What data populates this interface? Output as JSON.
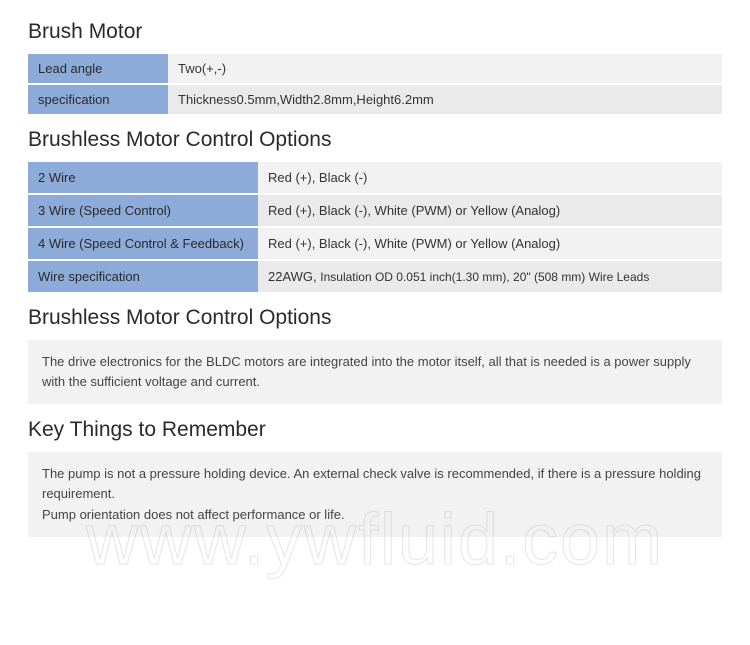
{
  "colors": {
    "header_cell_bg": "#8dabd8",
    "value_cell_bg": "#f2f2f2",
    "value_cell_bg_alt": "#eaeaea",
    "page_bg": "#ffffff",
    "title_color": "#2a2a2a",
    "text_color": "#333333"
  },
  "sections": {
    "brush_motor": {
      "title": "Brush Motor",
      "rows": [
        {
          "label": "Lead angle",
          "value": "Two(+,-)"
        },
        {
          "label": "specification",
          "value": "Thickness0.5mm,Width2.8mm,Height6.2mm"
        }
      ]
    },
    "brushless_options_table": {
      "title": "Brushless Motor Control Options",
      "rows": [
        {
          "label": "2 Wire",
          "value": "Red (+), Black (-)"
        },
        {
          "label": "3 Wire (Speed Control)",
          "value": "Red (+), Black (-), White (PWM) or Yellow (Analog)"
        },
        {
          "label": "4 Wire (Speed Control & Feedback)",
          "value": "Red (+), Black (-), White (PWM) or Yellow (Analog)"
        },
        {
          "label": "Wire specification",
          "value_lead": "22AWG, ",
          "value_tail": "Insulation OD 0.051 inch(1.30 mm), 20\" (508 mm) Wire Leads"
        }
      ]
    },
    "brushless_options_note": {
      "title": "Brushless Motor Control Options",
      "body": "The drive electronics for the BLDC motors are integrated into the motor itself, all that is needed is a power supply with the sufficient voltage and current."
    },
    "key_things": {
      "title": "Key Things to Remember",
      "body_line1": "The pump is not a pressure holding device. An external check valve is recommended, if there is a pressure holding requirement.",
      "body_line2": "Pump orientation does not affect performance or life."
    }
  },
  "watermark": "www.ywfluid.com"
}
